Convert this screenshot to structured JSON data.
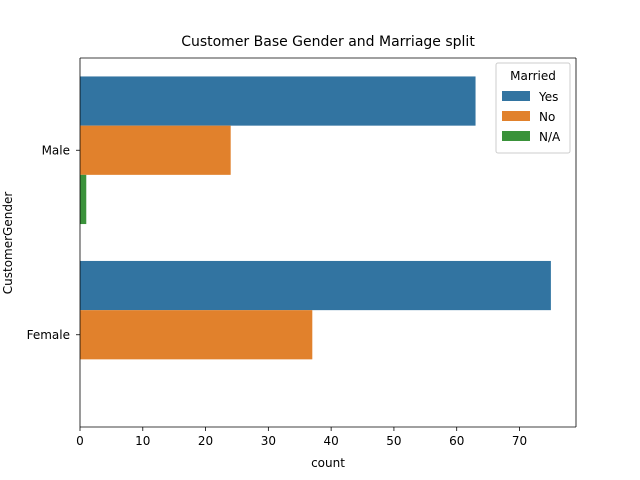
{
  "chart_data": {
    "type": "bar",
    "orientation": "horizontal",
    "title": "Customer Base Gender and Marriage split",
    "xlabel": "count",
    "ylabel": "CustomerGender",
    "categories": [
      "Male",
      "Female"
    ],
    "series": [
      {
        "name": "Yes",
        "values": [
          63,
          75
        ],
        "color": "#3274a1"
      },
      {
        "name": "No",
        "values": [
          24,
          37
        ],
        "color": "#e1812c"
      },
      {
        "name": "N/A",
        "values": [
          1,
          0
        ],
        "color": "#3a923a"
      }
    ],
    "xlim": [
      0,
      79
    ],
    "xticks": [
      0,
      10,
      20,
      30,
      40,
      50,
      60,
      70
    ],
    "legend": {
      "title": "Married",
      "position": "top-right"
    },
    "grid": false
  }
}
